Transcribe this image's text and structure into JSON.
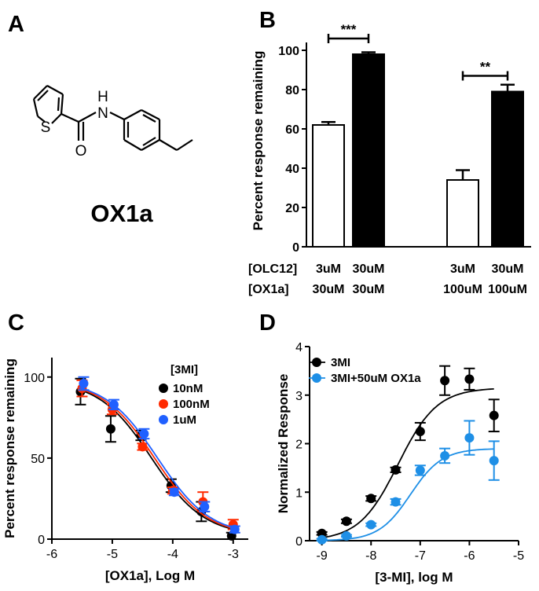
{
  "panels": {
    "A": {
      "letter": "A",
      "compound_name": "OX1a",
      "atoms": {
        "S": "S",
        "O": "O",
        "N": "N",
        "H": "H"
      }
    },
    "B": {
      "letter": "B"
    },
    "C": {
      "letter": "C"
    },
    "D": {
      "letter": "D"
    }
  },
  "chart_data": [
    {
      "panel": "B",
      "type": "bar",
      "ylabel": "Percent response remaining",
      "ylim": [
        0,
        100
      ],
      "yticks": [
        0,
        20,
        40,
        60,
        80,
        100
      ],
      "row_labels": [
        "[OLC12]",
        "[OX1a]"
      ],
      "bars": [
        {
          "olc12": "3uM",
          "ox1a": "30uM",
          "value": 62,
          "error": 1.5,
          "fill": "white"
        },
        {
          "olc12": "30uM",
          "ox1a": "30uM",
          "value": 98,
          "error": 1,
          "fill": "black"
        },
        {
          "olc12": "3uM",
          "ox1a": "100uM",
          "value": 34,
          "error": 5,
          "fill": "white"
        },
        {
          "olc12": "30uM",
          "ox1a": "100uM",
          "value": 79,
          "error": 3.5,
          "fill": "black"
        }
      ],
      "significance": [
        {
          "label": "***",
          "from": 0,
          "to": 1,
          "y": 106
        },
        {
          "label": "**",
          "from": 2,
          "to": 3,
          "y": 87
        }
      ]
    },
    {
      "panel": "C",
      "type": "scatter",
      "xlabel": "[OX1a], Log M",
      "ylabel": "Percent response remaining",
      "xlim": [
        -6,
        -2.75
      ],
      "ylim": [
        0,
        112
      ],
      "xticks": [
        -6,
        -5,
        -4,
        -3
      ],
      "yticks": [
        0,
        50,
        100
      ],
      "legend_title": "[3MI]",
      "series": [
        {
          "name": "10nM",
          "color": "#000000",
          "x": [
            -5.5,
            -5,
            -4.5,
            -4,
            -3.5,
            -3
          ],
          "y": [
            91,
            68,
            64,
            33,
            17,
            2
          ],
          "err": [
            8,
            8,
            3,
            4,
            6,
            2
          ]
        },
        {
          "name": "100nM",
          "color": "#ff2a00",
          "x": [
            -5.5,
            -5,
            -4.5,
            -4,
            -3.5,
            -3
          ],
          "y": [
            93,
            80,
            57,
            30,
            23,
            9
          ],
          "err": [
            5,
            3,
            2,
            2,
            6,
            3
          ]
        },
        {
          "name": "1uM",
          "color": "#2060ff",
          "x": [
            -5.5,
            -5,
            -4.5,
            -4,
            -3.5,
            -3
          ],
          "y": [
            96,
            83,
            65,
            29,
            20,
            6
          ],
          "err": [
            4,
            3,
            3,
            2,
            3,
            2
          ]
        }
      ]
    },
    {
      "panel": "D",
      "type": "scatter",
      "xlabel": "[3-MI], log M",
      "ylabel": "Normalized Response",
      "xlim": [
        -9.25,
        -5
      ],
      "ylim": [
        0,
        4
      ],
      "xticks": [
        -9,
        -8,
        -7,
        -6,
        -5
      ],
      "yticks": [
        0,
        1,
        2,
        3,
        4
      ],
      "series": [
        {
          "name": "3MI",
          "color": "#000000",
          "x": [
            -9,
            -8.5,
            -8,
            -7.5,
            -7,
            -6.5,
            -6,
            -5.5
          ],
          "y": [
            0.15,
            0.4,
            0.87,
            1.46,
            2.25,
            3.3,
            3.33,
            2.58
          ],
          "err": [
            0.03,
            0.04,
            0.05,
            0.05,
            0.18,
            0.3,
            0.22,
            0.33
          ]
        },
        {
          "name": "3MI+50uM OX1a",
          "color": "#1e8fe6",
          "x": [
            -9,
            -8.5,
            -8,
            -7.5,
            -7,
            -6.5,
            -6,
            -5.5
          ],
          "y": [
            0.02,
            0.1,
            0.33,
            0.8,
            1.45,
            1.75,
            2.12,
            1.65
          ],
          "err": [
            0.02,
            0.02,
            0.03,
            0.06,
            0.1,
            0.15,
            0.35,
            0.4
          ]
        }
      ]
    }
  ]
}
